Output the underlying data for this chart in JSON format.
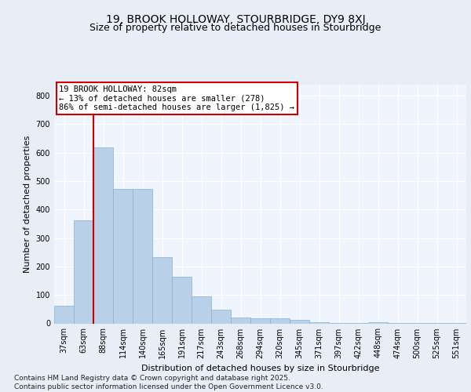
{
  "title1": "19, BROOK HOLLOWAY, STOURBRIDGE, DY9 8XJ",
  "title2": "Size of property relative to detached houses in Stourbridge",
  "xlabel": "Distribution of detached houses by size in Stourbridge",
  "ylabel": "Number of detached properties",
  "categories": [
    "37sqm",
    "63sqm",
    "88sqm",
    "114sqm",
    "140sqm",
    "165sqm",
    "191sqm",
    "217sqm",
    "243sqm",
    "268sqm",
    "294sqm",
    "320sqm",
    "345sqm",
    "371sqm",
    "397sqm",
    "422sqm",
    "448sqm",
    "474sqm",
    "500sqm",
    "525sqm",
    "551sqm"
  ],
  "values": [
    62,
    362,
    617,
    473,
    473,
    233,
    163,
    95,
    48,
    22,
    18,
    18,
    13,
    3,
    1,
    1,
    5,
    1,
    1,
    1,
    1
  ],
  "bar_color": "#b8d0e8",
  "bar_edge_color": "#8ab0d0",
  "vline_x": 1.5,
  "vline_color": "#cc0000",
  "annotation_line1": "19 BROOK HOLLOWAY: 82sqm",
  "annotation_line2": "← 13% of detached houses are smaller (278)",
  "annotation_line3": "86% of semi-detached houses are larger (1,825) →",
  "annotation_box_color": "#ffffff",
  "annotation_box_edge": "#cc0000",
  "footnote": "Contains HM Land Registry data © Crown copyright and database right 2025.\nContains public sector information licensed under the Open Government Licence v3.0.",
  "ylim": [
    0,
    840
  ],
  "yticks": [
    0,
    100,
    200,
    300,
    400,
    500,
    600,
    700,
    800
  ],
  "bg_color": "#e8eef8",
  "plot_bg": "#f0f4fc",
  "grid_color": "#ffffff",
  "title_fontsize": 10,
  "subtitle_fontsize": 9,
  "axis_label_fontsize": 8,
  "tick_fontsize": 7,
  "annotation_fontsize": 7.5,
  "footnote_fontsize": 6.5
}
